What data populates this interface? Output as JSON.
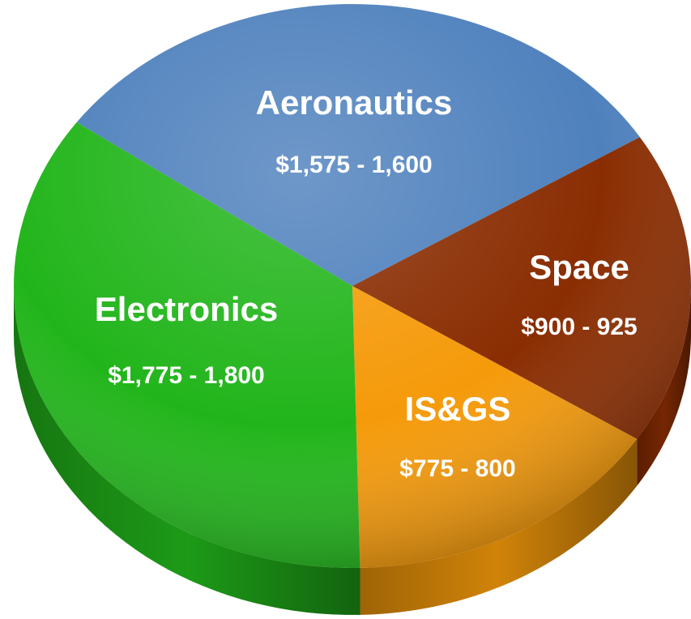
{
  "chart_data": {
    "type": "pie",
    "categories": [
      "Aeronautics",
      "Space",
      "IS&GS",
      "Electronics"
    ],
    "values": [
      1575,
      900,
      775,
      1775
    ],
    "values_high": [
      1600,
      925,
      800,
      1800
    ],
    "value_labels": [
      "$1,575 - 1,600",
      "$900 - 925",
      "$775 - 800",
      "$1,775 - 1,800"
    ],
    "colors": [
      "#4f81bd",
      "#8a2d02",
      "#f59a0a",
      "#22b51b"
    ]
  }
}
